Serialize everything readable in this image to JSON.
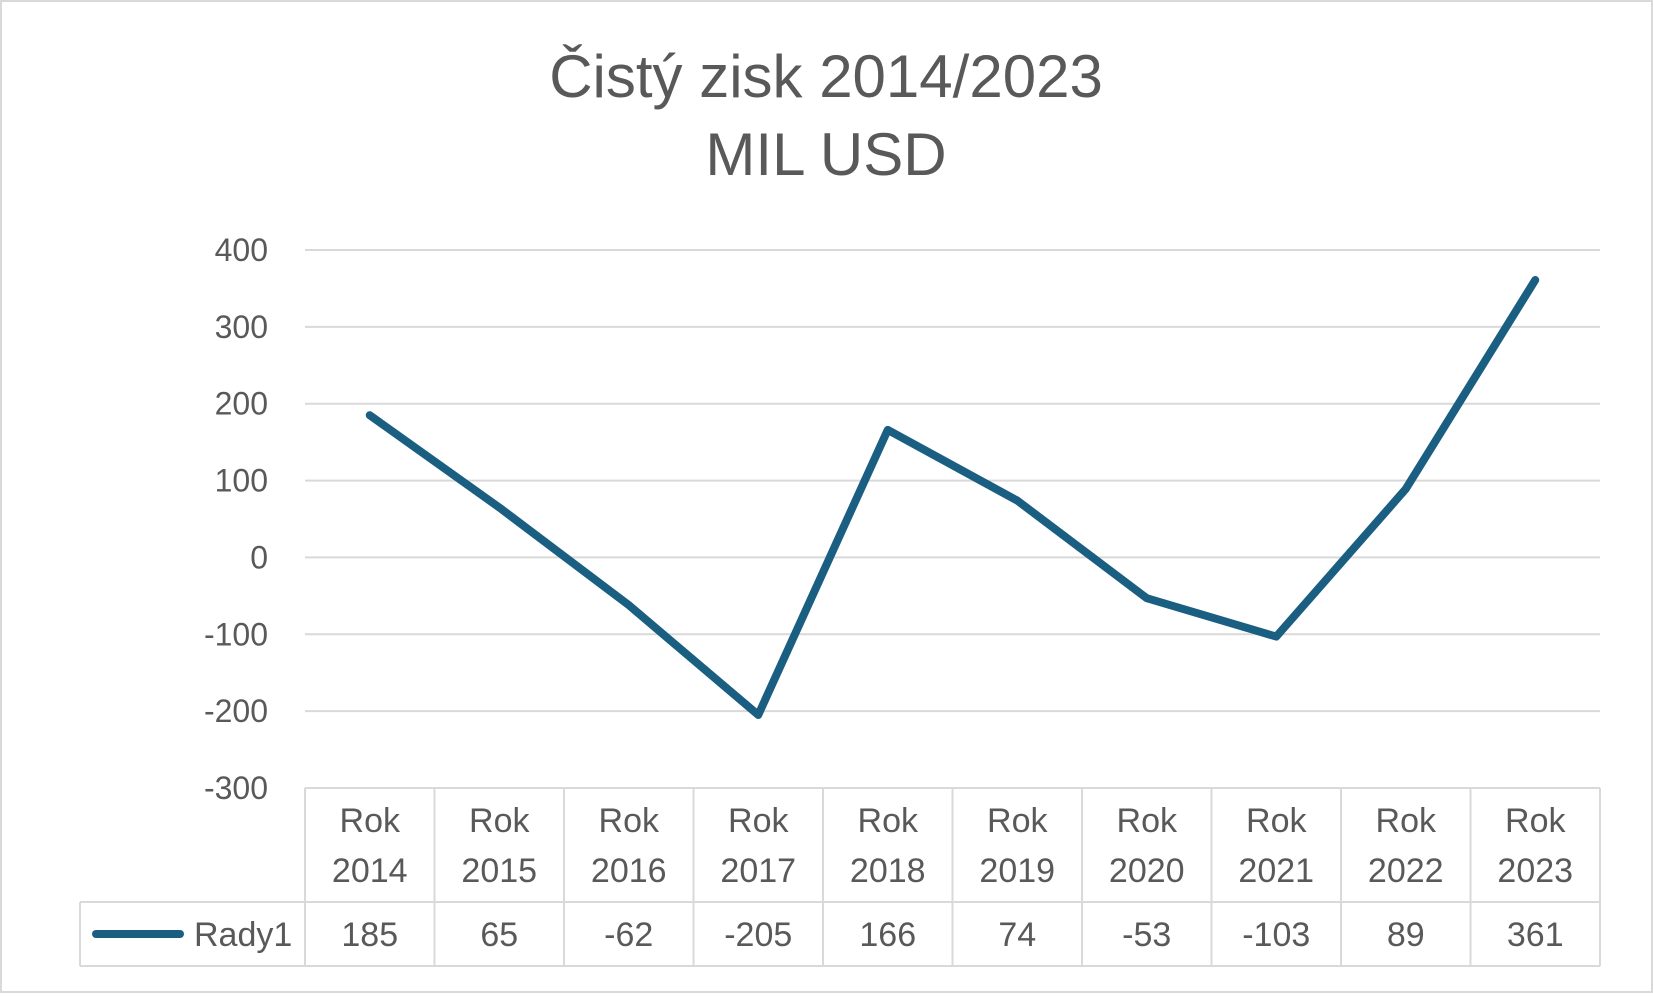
{
  "chart_data": {
    "type": "line",
    "title": "Čistý zisk 2014/2023",
    "subtitle": "MIL USD",
    "categories": [
      [
        "Rok",
        "2014"
      ],
      [
        "Rok",
        "2015"
      ],
      [
        "Rok",
        "2016"
      ],
      [
        "Rok",
        "2017"
      ],
      [
        "Rok",
        "2018"
      ],
      [
        "Rok",
        "2019"
      ],
      [
        "Rok",
        "2020"
      ],
      [
        "Rok",
        "2021"
      ],
      [
        "Rok",
        "2022"
      ],
      [
        "Rok",
        "2023"
      ]
    ],
    "series": [
      {
        "name": "Rady1",
        "values": [
          185,
          65,
          -62,
          -205,
          166,
          74,
          -53,
          -103,
          89,
          361
        ],
        "color": "#1a5f82"
      }
    ],
    "y_ticks": [
      "400",
      "300",
      "200",
      "100",
      "0",
      "-100",
      "-200",
      "-300"
    ],
    "ylim": [
      -300,
      400
    ],
    "grid": true,
    "data_table": true,
    "colors": {
      "gridline": "#d9d9d9",
      "text": "#595959",
      "line": "#1a5f82"
    }
  }
}
